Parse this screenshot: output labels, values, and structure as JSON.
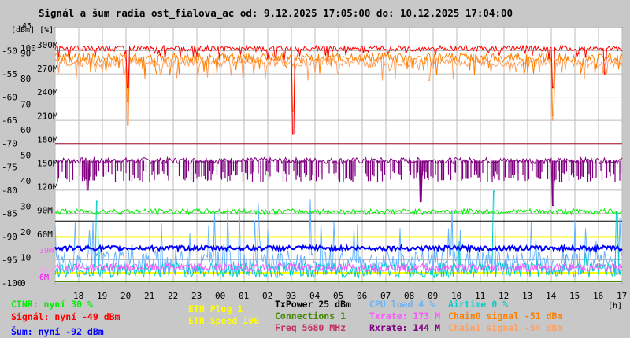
{
  "title": "Signál a šum radia ost_fialova_ac od: 9.12.2025 17:05:00 do: 10.12.2025 17:04:00",
  "colors": {
    "background": "#c8c8c8",
    "plot": "#ffffff",
    "grid": "#bbbbbb",
    "signal": "#ff0000",
    "chain0": "#ff8000",
    "chain1": "#ffa060",
    "noise": "#0000ff",
    "cinr": "#00ee00",
    "ccq": "#0000cc",
    "rxrate": "#800080",
    "txrate": "#ff55ff",
    "cpu": "#66b3ff",
    "airtime": "#00cccc",
    "eth": "#ffff00",
    "conn": "#448800",
    "freq": "#c0305a"
  },
  "chart_data": {
    "type": "line",
    "units_header": "[dBm] [%]",
    "x_unit_label": "[h]",
    "x_ticks": [
      "18",
      "19",
      "20",
      "21",
      "22",
      "23",
      "00",
      "01",
      "02",
      "03",
      "04",
      "05",
      "06",
      "07",
      "08",
      "09",
      "10",
      "11",
      "12",
      "13",
      "14",
      "15",
      "16",
      "17"
    ],
    "y_dbm": {
      "min": -100,
      "max": -45,
      "ticks": [
        "-45",
        "-50",
        "-55",
        "-60",
        "-65",
        "-70",
        "-75",
        "-80",
        "-85",
        "-90",
        "-95",
        "-100"
      ]
    },
    "y_pct": {
      "min": 0,
      "max": 100,
      "ticks": [
        "100",
        "90",
        "80",
        "70",
        "60",
        "50",
        "40",
        "30",
        "20",
        "10",
        "0"
      ]
    },
    "y_rate": {
      "min": 0,
      "max": 300,
      "unit": "M",
      "ticks": [
        "300M",
        "270M",
        "240M",
        "210M",
        "180M",
        "150M",
        "120M",
        "90M",
        "60M"
      ]
    },
    "y_small": {
      "ticks": [
        "39M",
        "13M",
        "6M"
      ]
    },
    "series": [
      {
        "name": "Signál",
        "unit": "dBm",
        "level": -49.5,
        "dips": [
          [
            20,
            -58
          ],
          [
            3,
            -68
          ],
          [
            14,
            -58
          ],
          [
            16.2,
            -55
          ]
        ]
      },
      {
        "name": "Chain0 signal",
        "unit": "dBm",
        "level": -51.5,
        "dips": [
          [
            20,
            -61
          ],
          [
            3,
            -63
          ],
          [
            14,
            -64
          ]
        ]
      },
      {
        "name": "Chain1 signal",
        "unit": "dBm",
        "level": -52.5,
        "dips": [
          [
            20,
            -66
          ],
          [
            14,
            -65
          ]
        ]
      },
      {
        "name": "Šum",
        "unit": "dBm",
        "level": -92.5
      },
      {
        "name": "CINR",
        "unit": "%",
        "level": 28
      },
      {
        "name": "Rxrate",
        "unit": "M",
        "level": 155,
        "dips": [
          [
            18.3,
            120
          ],
          [
            8.4,
            105
          ],
          [
            14,
            100
          ]
        ]
      },
      {
        "name": "Freq",
        "unit": "MHz",
        "value": 5680
      }
    ]
  },
  "legend": {
    "cinr": "CINR: nyní 30 %",
    "signal": "Signál: nyní -49 dBm",
    "noise": "Šum: nyní -92 dBm",
    "eth_plug": "ETH Plug 1",
    "eth_speed": "ETH Speed 100",
    "txpower": "TxPower 25 dBm",
    "connections": "Connections 1",
    "freq": "Freq 5680 MHz",
    "cpu": "CPU load 4 %",
    "txrate": "Txrate: 173 M",
    "rxrate": "Rxrate: 144 M",
    "airtime": "Airtime 0 %",
    "chain0": "Chain0 signal -51 dBm",
    "chain1": "Chain1 signal -54 dBm"
  }
}
